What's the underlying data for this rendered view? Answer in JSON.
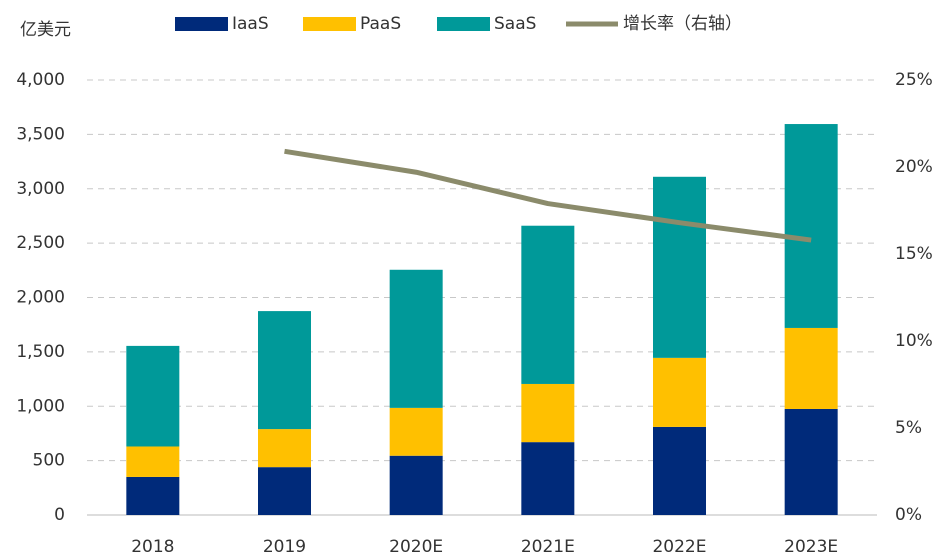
{
  "chart_data": {
    "type": "bar",
    "stacked": true,
    "y_axis_label": "亿美元",
    "categories": [
      "2018",
      "2019",
      "2020E",
      "2021E",
      "2022E",
      "2023E"
    ],
    "series": [
      {
        "name": "IaaS",
        "type": "bar",
        "color": "#002a7a",
        "values": [
          350,
          440,
          545,
          670,
          810,
          975
        ]
      },
      {
        "name": "PaaS",
        "type": "bar",
        "color": "#ffc000",
        "values": [
          280,
          350,
          440,
          535,
          635,
          745
        ]
      },
      {
        "name": "SaaS",
        "type": "bar",
        "color": "#009999",
        "values": [
          925,
          1085,
          1270,
          1455,
          1665,
          1875
        ]
      },
      {
        "name": "增长率（右轴）",
        "type": "line",
        "axis": "y2",
        "color": "#8b8b6b",
        "values": [
          null,
          20.9,
          19.7,
          17.9,
          16.8,
          15.8
        ]
      }
    ],
    "ylim": [
      0,
      4000
    ],
    "yticks": [
      0,
      500,
      {
        "value": 1000,
        "label": "1,000"
      },
      {
        "value": 1500,
        "label": "1,500"
      },
      {
        "value": 2000,
        "label": "2,000"
      },
      {
        "value": 2500,
        "label": "2,500"
      },
      {
        "value": 3000,
        "label": "3,000"
      },
      {
        "value": 3500,
        "label": "3,500"
      },
      {
        "value": 4000,
        "label": "4,000"
      }
    ],
    "y2lim": [
      0,
      25
    ],
    "y2ticks": [
      {
        "value": 0,
        "label": "0%"
      },
      {
        "value": 5,
        "label": "5%"
      },
      {
        "value": 10,
        "label": "10%"
      },
      {
        "value": 15,
        "label": "15%"
      },
      {
        "value": 20,
        "label": "20%"
      },
      {
        "value": 25,
        "label": "25%"
      }
    ],
    "grid": true,
    "legend": "top"
  }
}
